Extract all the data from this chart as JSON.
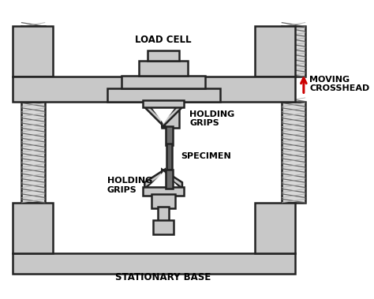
{
  "bg_color": "#ffffff",
  "gray": "#c8c8c8",
  "dark_gray": "#a0a0a0",
  "outline": "#222222",
  "screw_light": "#d4d4d4",
  "screw_dark": "#888888",
  "arrow_color": "#cc0000",
  "label_load_cell": "LOAD CELL",
  "label_moving_crosshead": "MOVING\nCROSSHEAD",
  "label_holding_grips_top": "HOLDING\nGRIPS",
  "label_holding_grips_bot": "HOLDING\nGRIPS",
  "label_specimen": "SPECIMEN",
  "label_base": "STATIONARY BASE",
  "lw": 1.8
}
